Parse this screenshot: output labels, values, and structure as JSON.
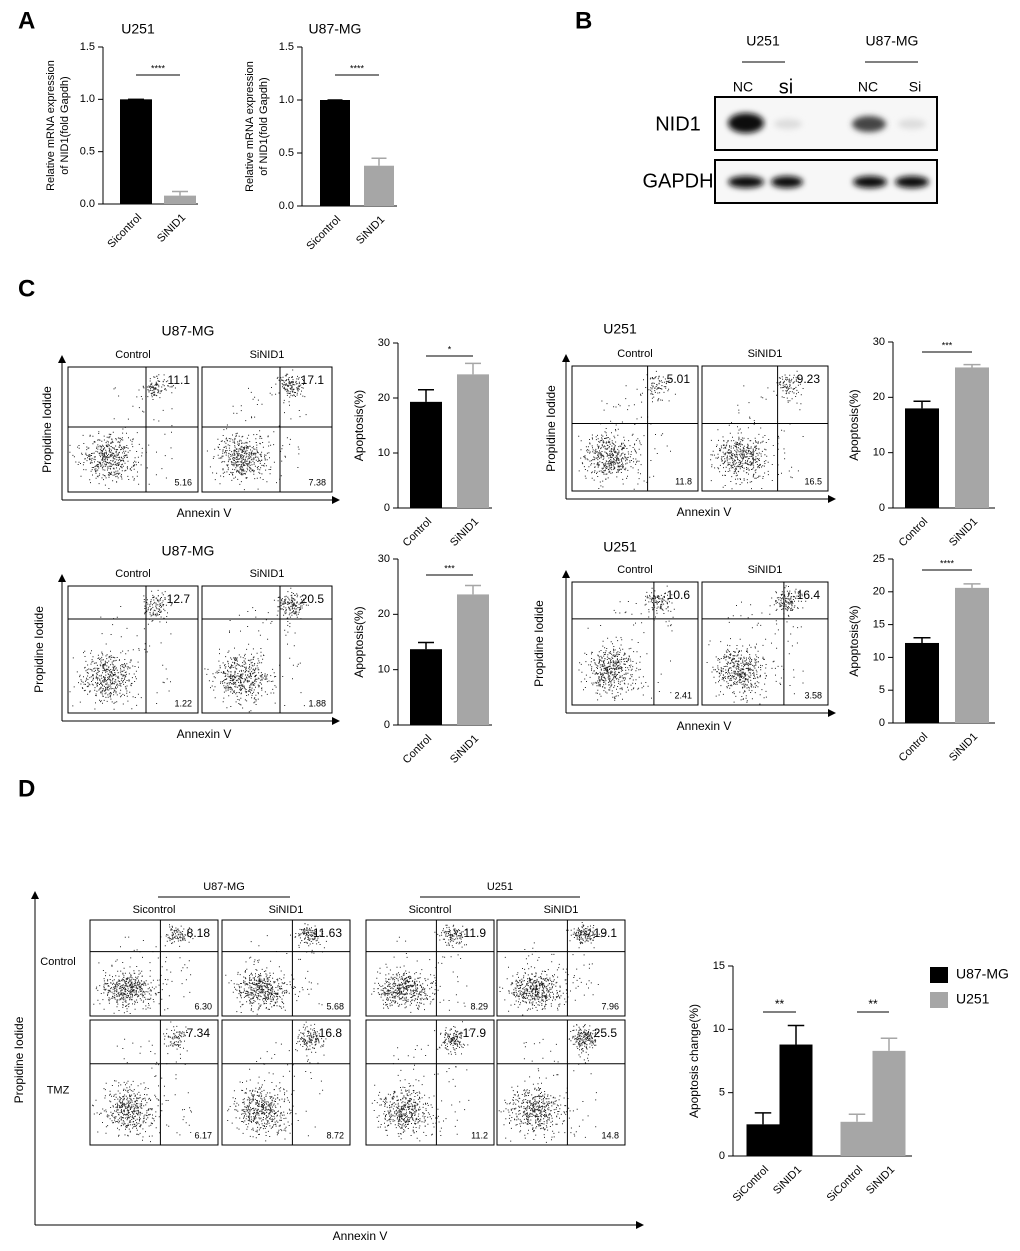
{
  "panel_labels": [
    "A",
    "B",
    "C",
    "D"
  ],
  "chart_data": [
    {
      "type": "bar",
      "title": "U251",
      "ylabel": [
        "Relative mRNA expression",
        "of NID1(fold Gapdh)"
      ],
      "categories": [
        "Sicontrol",
        "SiNID1"
      ],
      "values": [
        1.0,
        0.08
      ],
      "errors": [
        0,
        0.04
      ],
      "colors": [
        "#000000",
        "#a6a6a6"
      ],
      "ylim": [
        0,
        1.5
      ],
      "yticks": [
        {
          "value": 0,
          "label": "0.0"
        },
        {
          "value": 0.5,
          "label": "0.5"
        },
        {
          "value": 1,
          "label": "1.0"
        },
        {
          "value": 1.5,
          "label": "1.5"
        }
      ],
      "annotation": "****"
    },
    {
      "type": "bar",
      "title": "U87-MG",
      "ylabel": [
        "Relative mRNA expression",
        "of NID1(fold Gapdh)"
      ],
      "categories": [
        "Sicontrol",
        "SiNID1"
      ],
      "values": [
        1.0,
        0.38
      ],
      "errors": [
        0,
        0.07
      ],
      "colors": [
        "#000000",
        "#a6a6a6"
      ],
      "ylim": [
        0,
        1.5
      ],
      "yticks": [
        {
          "value": 0,
          "label": "0.0"
        },
        {
          "value": 0.5,
          "label": "0.5"
        },
        {
          "value": 1,
          "label": "1.0"
        },
        {
          "value": 1.5,
          "label": "1.5"
        }
      ],
      "annotation": "****"
    },
    {
      "type": "bar",
      "ylabel": "Apoptosis(%)",
      "categories": [
        "Control",
        "SiNID1"
      ],
      "values": [
        19.3,
        24.3
      ],
      "errors": [
        2.2,
        2.0
      ],
      "colors": [
        "#000000",
        "#a6a6a6"
      ],
      "ylim": [
        0,
        30
      ],
      "yticks": [
        0,
        10,
        20,
        30
      ],
      "annotation": "*"
    },
    {
      "type": "bar",
      "ylabel": "Apoptosis(%)",
      "categories": [
        "Control",
        "SiNID1"
      ],
      "values": [
        18.0,
        25.4
      ],
      "errors": [
        1.3,
        0.5
      ],
      "colors": [
        "#000000",
        "#a6a6a6"
      ],
      "ylim": [
        0,
        30
      ],
      "yticks": [
        0,
        10,
        20,
        30
      ],
      "annotation": "***"
    },
    {
      "type": "bar",
      "ylabel": "Apoptosis(%)",
      "categories": [
        "Control",
        "SiNID1"
      ],
      "values": [
        13.7,
        23.6
      ],
      "errors": [
        1.2,
        1.6
      ],
      "colors": [
        "#000000",
        "#a6a6a6"
      ],
      "ylim": [
        0,
        30
      ],
      "yticks": [
        0,
        10,
        20,
        30
      ],
      "annotation": "***"
    },
    {
      "type": "bar",
      "ylabel": "Apoptosis(%)",
      "categories": [
        "Control",
        "SiNID1"
      ],
      "values": [
        12.2,
        20.6
      ],
      "errors": [
        0.8,
        0.6
      ],
      "colors": [
        "#000000",
        "#a6a6a6"
      ],
      "ylim": [
        0,
        25
      ],
      "yticks": [
        0,
        5,
        10,
        15,
        20,
        25
      ],
      "annotation": "****"
    },
    {
      "type": "bar",
      "ylabel": "Apoptosis change(%)",
      "categories": [
        "SiControl",
        "SiNID1"
      ],
      "series": [
        {
          "name": "U87-MG",
          "color": "#000000",
          "values": [
            2.5,
            8.8
          ],
          "errors": [
            0.9,
            1.5
          ]
        },
        {
          "name": "U251",
          "color": "#a6a6a6",
          "values": [
            2.7,
            8.3
          ],
          "errors": [
            0.6,
            1.0
          ]
        }
      ],
      "ylim": [
        0,
        15
      ],
      "yticks": [
        0,
        5,
        10,
        15
      ],
      "annotations": [
        "**",
        "**"
      ]
    }
  ],
  "blot": {
    "groups": [
      {
        "name": "U251",
        "lanes": [
          "NC",
          "si"
        ]
      },
      {
        "name": "U87-MG",
        "lanes": [
          "NC",
          "Si"
        ]
      }
    ],
    "rows": [
      "NID1",
      "GAPDH"
    ]
  },
  "flow": [
    {
      "title": "U87-MG",
      "columns": [
        "Control",
        "SiNID1"
      ],
      "xlabel": "Annexin V",
      "ylabel": "Propidine Iodide",
      "plots": [
        {
          "upper": "11.1",
          "lower": "5.16"
        },
        {
          "upper": "17.1",
          "lower": "7.38"
        }
      ]
    },
    {
      "title": "U251",
      "columns": [
        "Control",
        "SiNID1"
      ],
      "xlabel": "Annexin V",
      "ylabel": "Propidine Iodide",
      "plots": [
        {
          "upper": "5.01",
          "lower": "11.8"
        },
        {
          "upper": "9.23",
          "lower": "16.5"
        }
      ]
    },
    {
      "title": "U87-MG",
      "columns": [
        "Control",
        "SiNID1"
      ],
      "xlabel": "Annexin V",
      "ylabel": "Propidine Iodide",
      "plots": [
        {
          "upper": "12.7",
          "lower": "1.22"
        },
        {
          "upper": "20.5",
          "lower": "1.88"
        }
      ]
    },
    {
      "title": "U251",
      "columns": [
        "Control",
        "SiNID1"
      ],
      "xlabel": "Annexin V",
      "ylabel": "Propidine Iodide",
      "plots": [
        {
          "upper": "10.6",
          "lower": "2.41"
        },
        {
          "upper": "16.4",
          "lower": "3.58"
        }
      ]
    }
  ],
  "flow_d": {
    "headers": [
      "U87-MG",
      "U251"
    ],
    "columns": [
      "Sicontrol",
      "SiNID1",
      "Sicontrol",
      "SiNID1"
    ],
    "rows": [
      "Control",
      "TMZ"
    ],
    "xlabel": "Annexin V",
    "ylabel": "Propidine Iodide",
    "plots": [
      [
        {
          "upper": "8.18",
          "lower": "6.30"
        },
        {
          "upper": "11.63",
          "lower": "5.68"
        },
        {
          "upper": "11.9",
          "lower": "8.29"
        },
        {
          "upper": "19.1",
          "lower": "7.96"
        }
      ],
      [
        {
          "upper": "7.34",
          "lower": "6.17"
        },
        {
          "upper": "16.8",
          "lower": "8.72"
        },
        {
          "upper": "17.9",
          "lower": "11.2"
        },
        {
          "upper": "25.5",
          "lower": "14.8"
        }
      ]
    ]
  }
}
